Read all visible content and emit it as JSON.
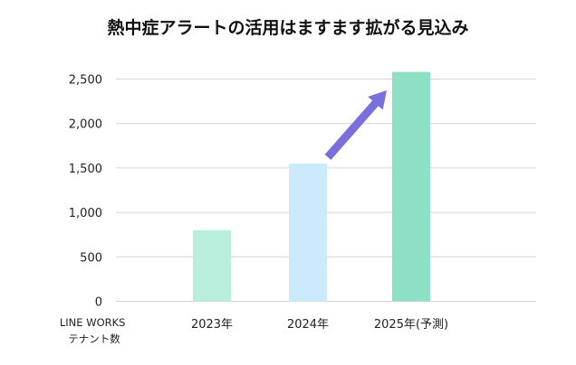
{
  "chart_data": {
    "type": "bar",
    "title": "熱中症アラートの活用はますます拡がる見込み",
    "xlabel": [
      "LINE WORKS",
      "テナント数"
    ],
    "ylabel": "",
    "categories": [
      "2023年",
      "2024年",
      "2025年(予測)"
    ],
    "values": [
      800,
      1550,
      2580
    ],
    "colors": [
      "#b9eddc",
      "#cceafd",
      "#8ddfc6"
    ],
    "ylim": [
      0,
      2500
    ],
    "yticks": [
      0,
      500,
      1000,
      1500,
      2000,
      2500
    ],
    "ytick_labels": [
      "0",
      "500",
      "1,000",
      "1,500",
      "2,000",
      "2,500"
    ],
    "grid": true,
    "legend": "none",
    "annotation": {
      "type": "arrow",
      "meaning": "increase",
      "color": "#7a6fdc",
      "from_category": "2024年",
      "to_category": "2025年(予測)"
    }
  }
}
